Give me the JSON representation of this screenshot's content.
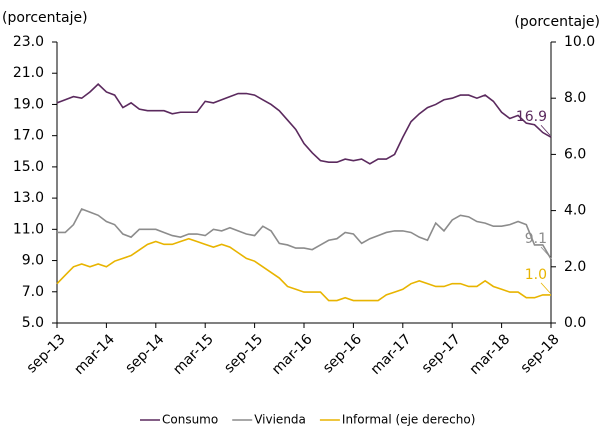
{
  "chart_data": {
    "type": "line",
    "y_label": "(porcentaje)",
    "y2_label": "(porcentaje)",
    "categories": [
      "sep-13",
      null,
      null,
      null,
      null,
      null,
      "mar-14",
      null,
      null,
      null,
      null,
      null,
      "sep-14",
      null,
      null,
      null,
      null,
      null,
      "mar-15",
      null,
      null,
      null,
      null,
      null,
      "sep-15",
      null,
      null,
      null,
      null,
      null,
      "mar-16",
      null,
      null,
      null,
      null,
      null,
      "sep-16",
      null,
      null,
      null,
      null,
      null,
      "mar-17",
      null,
      null,
      null,
      null,
      null,
      "sep-17",
      null,
      null,
      null,
      null,
      null,
      "mar-18",
      null,
      null,
      null,
      null,
      null,
      "sep-18"
    ],
    "series": [
      {
        "name": "Consumo",
        "color": "#5b2a5e",
        "axis": "y",
        "values": [
          19.1,
          19.3,
          19.5,
          19.4,
          19.8,
          20.3,
          19.8,
          19.6,
          18.8,
          19.1,
          18.7,
          18.6,
          18.6,
          18.6,
          18.4,
          18.5,
          18.5,
          18.5,
          19.2,
          19.1,
          19.3,
          19.5,
          19.7,
          19.7,
          19.6,
          19.3,
          19.0,
          18.6,
          18.0,
          17.4,
          16.5,
          15.9,
          15.4,
          15.3,
          15.3,
          15.5,
          15.4,
          15.5,
          15.2,
          15.5,
          15.5,
          15.8,
          16.9,
          17.9,
          18.4,
          18.8,
          19.0,
          19.3,
          19.4,
          19.6,
          19.6,
          19.4,
          19.6,
          19.2,
          18.5,
          18.1,
          18.3,
          17.8,
          17.7,
          17.2,
          16.9
        ],
        "value_labels": [
          null,
          null,
          null,
          null,
          null,
          null,
          null,
          null,
          null,
          null,
          null,
          null,
          null,
          null,
          null,
          null,
          null,
          null,
          null,
          null,
          null,
          null,
          null,
          null,
          null,
          null,
          null,
          null,
          null,
          null,
          null,
          null,
          null,
          null,
          null,
          null,
          null,
          null,
          null,
          null,
          null,
          null,
          null,
          null,
          null,
          null,
          null,
          null,
          null,
          null,
          null,
          null,
          null,
          null,
          null,
          null,
          null,
          null,
          null,
          null,
          "16.9"
        ]
      },
      {
        "name": "Vivienda",
        "color": "#8c8c8c",
        "axis": "y",
        "values": [
          10.8,
          10.8,
          11.3,
          12.3,
          12.1,
          11.9,
          11.5,
          11.3,
          10.7,
          10.5,
          11.0,
          11.0,
          11.0,
          10.8,
          10.6,
          10.5,
          10.7,
          10.7,
          10.6,
          11.0,
          10.9,
          11.1,
          10.9,
          10.7,
          10.6,
          11.2,
          10.9,
          10.1,
          10.0,
          9.8,
          9.8,
          9.7,
          10.0,
          10.3,
          10.4,
          10.8,
          10.7,
          10.1,
          10.4,
          10.6,
          10.8,
          10.9,
          10.9,
          10.8,
          10.5,
          10.3,
          11.4,
          10.9,
          11.6,
          11.9,
          11.8,
          11.5,
          11.4,
          11.2,
          11.2,
          11.3,
          11.5,
          11.3,
          10.0,
          10.0,
          9.1
        ],
        "value_labels": [
          null,
          null,
          null,
          null,
          null,
          null,
          null,
          null,
          null,
          null,
          null,
          null,
          null,
          null,
          null,
          null,
          null,
          null,
          null,
          null,
          null,
          null,
          null,
          null,
          null,
          null,
          null,
          null,
          null,
          null,
          null,
          null,
          null,
          null,
          null,
          null,
          null,
          null,
          null,
          null,
          null,
          null,
          null,
          null,
          null,
          null,
          null,
          null,
          null,
          null,
          null,
          null,
          null,
          null,
          null,
          null,
          null,
          null,
          null,
          null,
          "9.1"
        ]
      },
      {
        "name": "Informal (eje derecho)",
        "color": "#e8b400",
        "axis": "y2",
        "values": [
          1.4,
          1.7,
          2.0,
          2.1,
          2.0,
          2.1,
          2.0,
          2.2,
          2.3,
          2.4,
          2.6,
          2.8,
          2.9,
          2.8,
          2.8,
          2.9,
          3.0,
          2.9,
          2.8,
          2.7,
          2.8,
          2.7,
          2.5,
          2.3,
          2.2,
          2.0,
          1.8,
          1.6,
          1.3,
          1.2,
          1.1,
          1.1,
          1.1,
          0.8,
          0.8,
          0.9,
          0.8,
          0.8,
          0.8,
          0.8,
          1.0,
          1.1,
          1.2,
          1.4,
          1.5,
          1.4,
          1.3,
          1.3,
          1.4,
          1.4,
          1.3,
          1.3,
          1.5,
          1.3,
          1.2,
          1.1,
          1.1,
          0.9,
          0.9,
          1.0,
          1.0
        ],
        "value_labels": [
          null,
          null,
          null,
          null,
          null,
          null,
          null,
          null,
          null,
          null,
          null,
          null,
          null,
          null,
          null,
          null,
          null,
          null,
          null,
          null,
          null,
          null,
          null,
          null,
          null,
          null,
          null,
          null,
          null,
          null,
          null,
          null,
          null,
          null,
          null,
          null,
          null,
          null,
          null,
          null,
          null,
          null,
          null,
          null,
          null,
          null,
          null,
          null,
          null,
          null,
          null,
          null,
          null,
          null,
          null,
          null,
          null,
          null,
          null,
          null,
          "1.0"
        ]
      }
    ],
    "ylim": [
      5,
      23
    ],
    "yticks": [
      {
        "value": 5,
        "label": "5.0"
      },
      {
        "value": 7,
        "label": "7.0"
      },
      {
        "value": 9,
        "label": "9.0"
      },
      {
        "value": 11,
        "label": "11.0"
      },
      {
        "value": 13,
        "label": "13.0"
      },
      {
        "value": 15,
        "label": "15.0"
      },
      {
        "value": 17,
        "label": "17.0"
      },
      {
        "value": 19,
        "label": "19.0"
      },
      {
        "value": 21,
        "label": "21.0"
      },
      {
        "value": 23,
        "label": "23.0"
      }
    ],
    "y2lim": [
      0,
      10
    ],
    "y2ticks": [
      {
        "value": 0,
        "label": "0.0"
      },
      {
        "value": 2,
        "label": "2.0"
      },
      {
        "value": 4,
        "label": "4.0"
      },
      {
        "value": 6,
        "label": "6.0"
      },
      {
        "value": 8,
        "label": "8.0"
      },
      {
        "value": 10,
        "label": "10.0"
      }
    ],
    "legend": "bottom"
  }
}
